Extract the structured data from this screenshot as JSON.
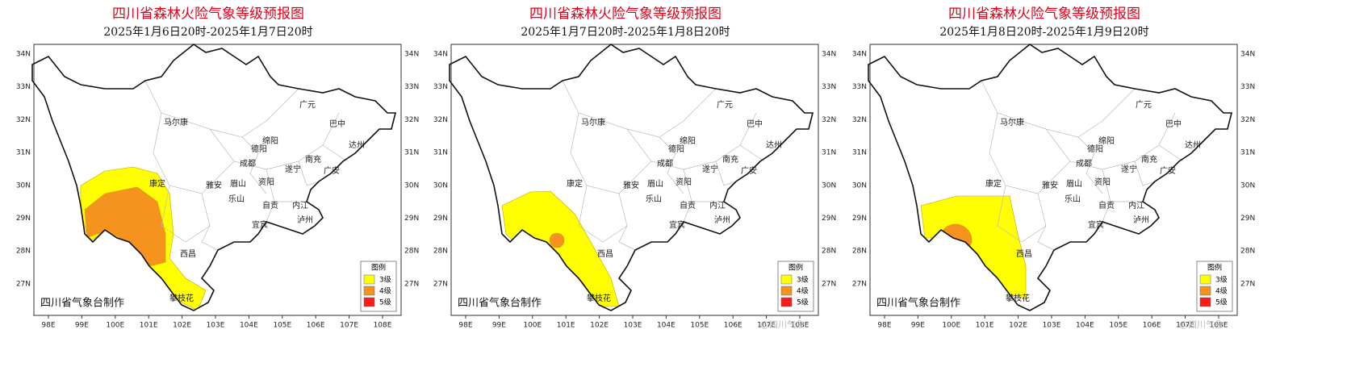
{
  "title": "四川省森林火险气象等级预报图",
  "panels": [
    {
      "subtitle": "2025年1月6日20时-2025年1月7日20时"
    },
    {
      "subtitle": "2025年1月7日20时-2025年1月8日20时"
    },
    {
      "subtitle": "2025年1月8日20时-2025年1月9日20时"
    }
  ],
  "lon_ticks": [
    "98E",
    "99E",
    "100E",
    "101E",
    "102E",
    "103E",
    "104E",
    "105E",
    "106E",
    "107E",
    "108E"
  ],
  "lat_ticks": [
    "34N",
    "33N",
    "32N",
    "31N",
    "30N",
    "29N",
    "28N",
    "27N"
  ],
  "cities": [
    "马尔康",
    "广元",
    "巴中",
    "绵阳",
    "德阳",
    "达州",
    "南充",
    "成都",
    "遂宁",
    "广安",
    "康定",
    "雅安",
    "眉山",
    "资阳",
    "乐山",
    "自贡",
    "内江",
    "宜宾",
    "泸州",
    "西昌",
    "攀枝花"
  ],
  "legend": {
    "title": "图例",
    "levels": [
      {
        "label": "3级",
        "color": "#ffff00"
      },
      {
        "label": "4级",
        "color": "#f6921e"
      },
      {
        "label": "5级",
        "color": "#ff1a1a"
      }
    ]
  },
  "credit": "四川省气象台制作",
  "watermark": "@四川气象"
}
